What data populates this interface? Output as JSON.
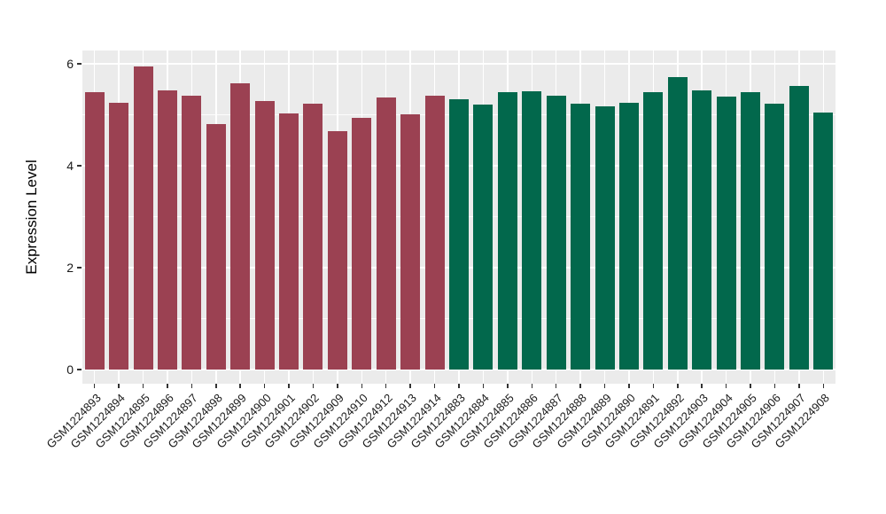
{
  "chart_data": {
    "type": "bar",
    "title": "",
    "xlabel": "",
    "ylabel": "Expression Level",
    "ylim": [
      -0.28,
      6.26
    ],
    "yticks": [
      0,
      2,
      4,
      6
    ],
    "ytick_labels": [
      "0",
      "2",
      "4",
      "6"
    ],
    "yticks_minor": [
      1,
      3,
      5
    ],
    "grid": "on",
    "legend_position": "none",
    "panel_bg": "#ebebeb",
    "grid_color": "#ffffff",
    "tick_color": "#333333",
    "categories": [
      "GSM1224893",
      "GSM1224894",
      "GSM1224895",
      "GSM1224896",
      "GSM1224897",
      "GSM1224898",
      "GSM1224899",
      "GSM1224900",
      "GSM1224901",
      "GSM1224902",
      "GSM1224909",
      "GSM1224910",
      "GSM1224912",
      "GSM1224913",
      "GSM1224914",
      "GSM1224883",
      "GSM1224884",
      "GSM1224885",
      "GSM1224886",
      "GSM1224887",
      "GSM1224888",
      "GSM1224889",
      "GSM1224890",
      "GSM1224891",
      "GSM1224892",
      "GSM1224903",
      "GSM1224904",
      "GSM1224905",
      "GSM1224906",
      "GSM1224907",
      "GSM1224908"
    ],
    "values": [
      5.44,
      5.23,
      5.95,
      5.47,
      5.38,
      4.82,
      5.61,
      5.26,
      5.03,
      5.22,
      4.67,
      4.93,
      5.33,
      5.01,
      5.38,
      5.3,
      5.2,
      5.44,
      5.46,
      5.38,
      5.22,
      5.17,
      5.23,
      5.44,
      5.73,
      5.47,
      5.36,
      5.45,
      5.21,
      5.57,
      5.04
    ],
    "groups": [
      "groupA",
      "groupA",
      "groupA",
      "groupA",
      "groupA",
      "groupA",
      "groupA",
      "groupA",
      "groupA",
      "groupA",
      "groupA",
      "groupA",
      "groupA",
      "groupA",
      "groupA",
      "groupB",
      "groupB",
      "groupB",
      "groupB",
      "groupB",
      "groupB",
      "groupB",
      "groupB",
      "groupB",
      "groupB",
      "groupB",
      "groupB",
      "groupB",
      "groupB",
      "groupB",
      "groupB"
    ],
    "group_colors": {
      "groupA": "#9b4152",
      "groupB": "#02684c"
    }
  }
}
